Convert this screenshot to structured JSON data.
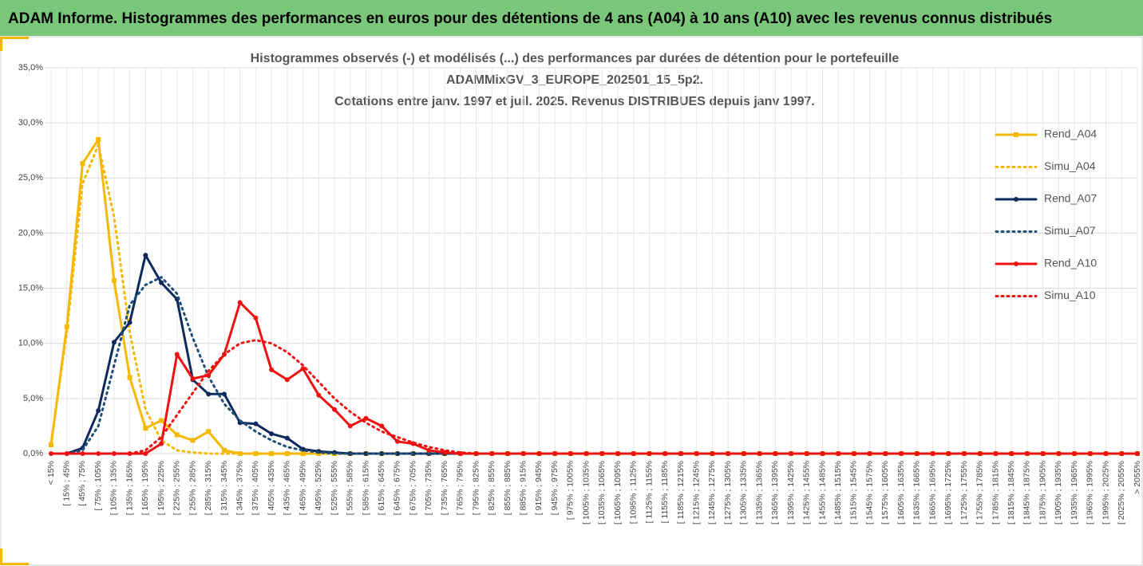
{
  "chart_data": {
    "type": "line",
    "header": "ADAM Informe. Histogrammes des performances en euros pour des détentions de 4 ans (A04) à 10 ans (A10) avec les revenus connus distribués",
    "title_lines": [
      "Histogrammes observés (-) et modélisés (...) des performances par durées de détention pour le portefeuille",
      "ADAMMixGV_3_EUROPE_202501_15_5p2.",
      "Cotations entre janv. 1997 et juil. 2025. Revenus DISTRIBUES depuis janv 1997."
    ],
    "categories": [
      "< 15%",
      "[ 15% ; 45%",
      "[ 45% ; 75%",
      "[ 75% ; 105%",
      "[ 105% ; 135%",
      "[ 135% ; 165%",
      "[ 165% ; 195%",
      "[ 195% ; 225%",
      "[ 225% ; 255%",
      "[ 255% ; 285%",
      "[ 285% ; 315%",
      "[ 315% ; 345%",
      "[ 345% ; 375%",
      "[ 375% ; 405%",
      "[ 405% ; 435%",
      "[ 435% ; 465%",
      "[ 465% ; 495%",
      "[ 495% ; 525%",
      "[ 525% ; 555%",
      "[ 555% ; 585%",
      "[ 585% ; 615%",
      "[ 615% ; 645%",
      "[ 645% ; 675%",
      "[ 675% ; 705%",
      "[ 705% ; 735%",
      "[ 735% ; 765%",
      "[ 765% ; 795%",
      "[ 795% ; 825%",
      "[ 825% ; 855%",
      "[ 855% ; 885%",
      "[ 885% ; 915%",
      "[ 915% ; 945%",
      "[ 945% ; 975%",
      "[ 975% ; 1005%",
      "[ 1005% ; 1035%",
      "[ 1035% ; 1065%",
      "[ 1065% ; 1095%",
      "[ 1095% ; 1125%",
      "[ 1125% ; 1155%",
      "[ 1155% ; 1185%",
      "[ 1185% ; 1215%",
      "[ 1215% ; 1245%",
      "[ 1245% ; 1275%",
      "[ 1275% ; 1305%",
      "[ 1305% ; 1335%",
      "[ 1335% ; 1365%",
      "[ 1365% ; 1395%",
      "[ 1395% ; 1425%",
      "[ 1425% ; 1455%",
      "[ 1455% ; 1485%",
      "[ 1485% ; 1515%",
      "[ 1515% ; 1545%",
      "[ 1545% ; 1575%",
      "[ 1575% ; 1605%",
      "[ 1605% ; 1635%",
      "[ 1635% ; 1665%",
      "[ 1665% ; 1695%",
      "[ 1695% ; 1725%",
      "[ 1725% ; 1755%",
      "[ 1755% ; 1785%",
      "[ 1785% ; 1815%",
      "[ 1815% ; 1845%",
      "[ 1845% ; 1875%",
      "[ 1875% ; 1905%",
      "[ 1905% ; 1935%",
      "[ 1935% ; 1965%",
      "[ 1965% ; 1995%",
      "[ 1995% ; 2025%",
      "[ 2025% ; 2055%",
      "> 2055%"
    ],
    "series": [
      {
        "name": "Rend_A04",
        "color": "#f5b800",
        "dotted": false,
        "marker": "square",
        "values": [
          0.8,
          11.5,
          26.3,
          28.5,
          15.7,
          6.9,
          2.3,
          3.0,
          1.7,
          1.2,
          2.0,
          0.3,
          0,
          0,
          0,
          0,
          0,
          0,
          0,
          0,
          0,
          0,
          0,
          0,
          0,
          0,
          0,
          0,
          0,
          0,
          0,
          0,
          0,
          0,
          0,
          0,
          0,
          0,
          0,
          0,
          0,
          0,
          0,
          0,
          0,
          0,
          0,
          0,
          0,
          0,
          0,
          0,
          0,
          0,
          0,
          0,
          0,
          0,
          0,
          0,
          0,
          0,
          0,
          0,
          0,
          0,
          0,
          0,
          0,
          0
        ]
      },
      {
        "name": "Simu_A04",
        "color": "#f5b800",
        "dotted": true,
        "values": [
          1.0,
          11,
          24.5,
          28.0,
          21.5,
          11,
          4.0,
          1.2,
          0.3,
          0.1,
          0,
          0,
          0,
          0,
          0,
          0,
          0,
          0,
          0,
          0,
          0,
          0,
          0,
          0,
          0,
          0,
          0,
          0,
          0,
          0,
          0,
          0,
          0,
          0,
          0,
          0,
          0,
          0,
          0,
          0,
          0,
          0,
          0,
          0,
          0,
          0,
          0,
          0,
          0,
          0,
          0,
          0,
          0,
          0,
          0,
          0,
          0,
          0,
          0,
          0,
          0,
          0,
          0,
          0,
          0,
          0,
          0,
          0,
          0,
          0
        ]
      },
      {
        "name": "Rend_A07",
        "color": "#0e2a5c",
        "dotted": false,
        "marker": "circle",
        "values": [
          null,
          0,
          0.5,
          3.9,
          10.1,
          11.9,
          18.0,
          15.5,
          14.0,
          6.7,
          5.4,
          5.4,
          2.8,
          2.7,
          1.8,
          1.4,
          0.4,
          0.2,
          0.1,
          0,
          0,
          0,
          0,
          0,
          0,
          0,
          0,
          0,
          0,
          0,
          0,
          0,
          0,
          0,
          0,
          0,
          0,
          0,
          0,
          0,
          0,
          0,
          0,
          0,
          0,
          0,
          0,
          0,
          0,
          0,
          0,
          0,
          0,
          0,
          0,
          0,
          0,
          0,
          0,
          0,
          0,
          0,
          0,
          0,
          0,
          0,
          0,
          0,
          0,
          0
        ]
      },
      {
        "name": "Simu_A07",
        "color": "#1f4e79",
        "dotted": true,
        "values": [
          null,
          0,
          0.3,
          2.5,
          8,
          13.5,
          15.3,
          16.0,
          14.5,
          10.5,
          7.0,
          4.5,
          3.0,
          2.0,
          1.2,
          0.6,
          0.3,
          0.1,
          0,
          0,
          0,
          0,
          0,
          0,
          0,
          0,
          0,
          0,
          0,
          0,
          0,
          0,
          0,
          0,
          0,
          0,
          0,
          0,
          0,
          0,
          0,
          0,
          0,
          0,
          0,
          0,
          0,
          0,
          0,
          0,
          0,
          0,
          0,
          0,
          0,
          0,
          0,
          0,
          0,
          0,
          0,
          0,
          0,
          0,
          0,
          0,
          0,
          0,
          0,
          0
        ]
      },
      {
        "name": "Rend_A10",
        "color": "#ee1111",
        "dotted": false,
        "marker": "circle",
        "values": [
          0,
          0,
          0,
          0,
          0,
          0,
          0,
          0.9,
          9.0,
          6.8,
          7.1,
          9.0,
          13.7,
          12.3,
          7.6,
          6.7,
          7.7,
          5.3,
          4.0,
          2.5,
          3.2,
          2.5,
          1.1,
          0.9,
          0.3,
          0.1,
          0,
          0,
          0,
          0,
          0,
          0,
          0,
          0,
          0,
          0,
          0,
          0,
          0,
          0,
          0,
          0,
          0,
          0,
          0,
          0,
          0,
          0,
          0,
          0,
          0,
          0,
          0,
          0,
          0,
          0,
          0,
          0,
          0,
          0,
          0,
          0,
          0,
          0,
          0,
          0,
          0,
          0,
          0,
          0
        ]
      },
      {
        "name": "Simu_A10",
        "color": "#ee1111",
        "dotted": true,
        "values": [
          null,
          null,
          null,
          null,
          null,
          0,
          0.3,
          1.5,
          3.5,
          5.5,
          7.5,
          9.0,
          10.0,
          10.3,
          10.0,
          9.2,
          8.0,
          6.5,
          5.0,
          3.8,
          2.8,
          2.0,
          1.5,
          1.0,
          0.6,
          0.3,
          0.1,
          0,
          0,
          0,
          0,
          0,
          0,
          0,
          0,
          0,
          0,
          0,
          0,
          0,
          0,
          0,
          0,
          0,
          0,
          0,
          0,
          0,
          0,
          0,
          0,
          0,
          0,
          0,
          0,
          0,
          0,
          0,
          0,
          0,
          0,
          0,
          0,
          0,
          0,
          0,
          0,
          0,
          0,
          0
        ]
      }
    ],
    "ylim": [
      0,
      35
    ],
    "yticks": [
      {
        "value": 0,
        "label": "0,0%"
      },
      {
        "value": 5,
        "label": "5,0%"
      },
      {
        "value": 10,
        "label": "10,0%"
      },
      {
        "value": 15,
        "label": "15,0%"
      },
      {
        "value": 20,
        "label": "20,0%"
      },
      {
        "value": 25,
        "label": "25,0%"
      },
      {
        "value": 30,
        "label": "30,0%"
      },
      {
        "value": 35,
        "label": "35,0%"
      }
    ],
    "grid": true,
    "legend": "right"
  }
}
